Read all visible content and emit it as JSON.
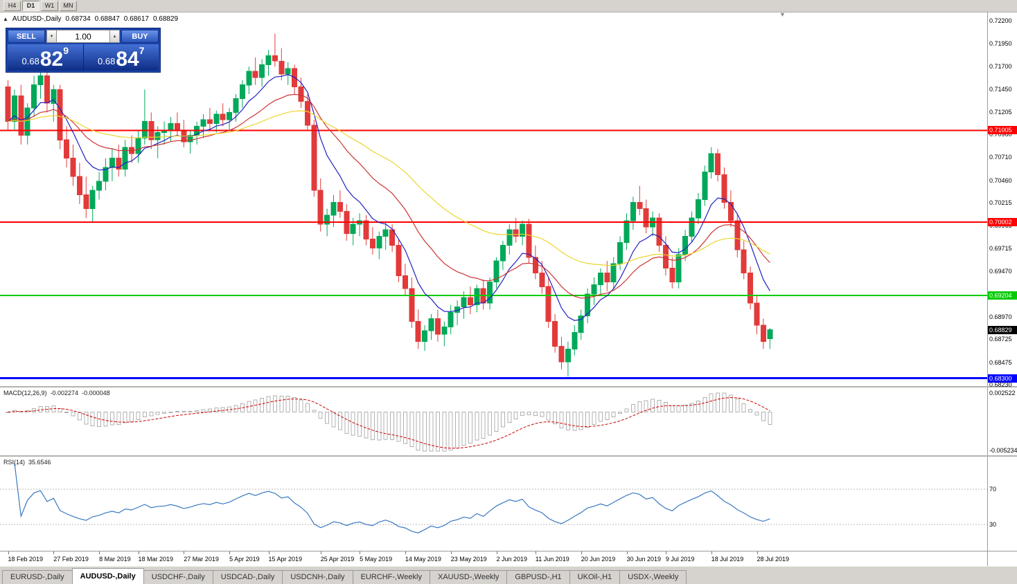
{
  "toolbar": {
    "timeframes": [
      "H4",
      "D1",
      "W1",
      "MN"
    ],
    "active": "D1"
  },
  "icons": {
    "panel_collapse": "▲",
    "chart_shift": "▼",
    "volume_up": "▲",
    "volume_down": "▼"
  },
  "header": {
    "symbol": "AUDUSD-,Daily",
    "o": "0.68734",
    "h": "0.68847",
    "l": "0.68617",
    "c": "0.68829"
  },
  "trade_panel": {
    "sell_label": "SELL",
    "buy_label": "BUY",
    "volume": "1.00",
    "sell_price": {
      "prefix": "0.68",
      "big": "82",
      "sup": "9"
    },
    "buy_price": {
      "prefix": "0.68",
      "big": "84",
      "sup": "7"
    }
  },
  "price_scale": [
    "0.72200",
    "0.71950",
    "0.71700",
    "0.71450",
    "0.71205",
    "0.70960",
    "0.70710",
    "0.70460",
    "0.70215",
    "0.69965",
    "0.69715",
    "0.69470",
    "0.68970",
    "0.68725",
    "0.68475",
    "0.68230"
  ],
  "hlines": [
    {
      "price": 0.71005,
      "label": "0.71005",
      "color": "#FF0000",
      "thickness": 2,
      "name": "resistance-line-0-71005"
    },
    {
      "price": 0.70002,
      "label": "0.70002",
      "color": "#FF0000",
      "thickness": 2,
      "name": "resistance-line-0-70002"
    },
    {
      "price": 0.69204,
      "label": "0.69204",
      "color": "#00CC00",
      "thickness": 2,
      "name": "support-line-0-69204"
    },
    {
      "price": 0.683,
      "label": "0.68300",
      "color": "#0000FF",
      "thickness": 3,
      "name": "support-line-0-68300"
    }
  ],
  "current_price": {
    "label": "0.68829",
    "price": 0.68829,
    "bg": "#000000"
  },
  "macd": {
    "name": "MACD(12,26,9)",
    "value1": "-0.002274",
    "value2": "-0.000048",
    "scale_top": "0.002522",
    "scale_bottom": "-0.005234",
    "histogram_color": "#b0b0b0",
    "signal_color": "#CC0000"
  },
  "rsi": {
    "name": "RSI(14)",
    "value": "35.6546",
    "levels": [
      "70",
      "30"
    ],
    "line_color": "#3878C0",
    "level_color": "#b8b8b8"
  },
  "date_axis": [
    {
      "label": "18 Feb 2019",
      "idx": 0
    },
    {
      "label": "27 Feb 2019",
      "idx": 7
    },
    {
      "label": "8 Mar 2019",
      "idx": 14
    },
    {
      "label": "18 Mar 2019",
      "idx": 20
    },
    {
      "label": "27 Mar 2019",
      "idx": 27
    },
    {
      "label": "5 Apr 2019",
      "idx": 34
    },
    {
      "label": "15 Apr 2019",
      "idx": 40
    },
    {
      "label": "25 Apr 2019",
      "idx": 48
    },
    {
      "label": "5 May 2019",
      "idx": 54
    },
    {
      "label": "14 May 2019",
      "idx": 61
    },
    {
      "label": "23 May 2019",
      "idx": 68
    },
    {
      "label": "2 Jun 2019",
      "idx": 75
    },
    {
      "label": "11 Jun 2019",
      "idx": 81
    },
    {
      "label": "20 Jun 2019",
      "idx": 88
    },
    {
      "label": "30 Jun 2019",
      "idx": 95
    },
    {
      "label": "9 Jul 2019",
      "idx": 101
    },
    {
      "label": "18 Jul 2019",
      "idx": 108
    },
    {
      "label": "28 Jul 2019",
      "idx": 115
    }
  ],
  "tabs": [
    {
      "label": "EURUSD-,Daily",
      "active": false
    },
    {
      "label": "AUDUSD-,Daily",
      "active": true
    },
    {
      "label": "USDCHF-,Daily",
      "active": false
    },
    {
      "label": "USDCAD-,Daily",
      "active": false
    },
    {
      "label": "USDCNH-,Daily",
      "active": false
    },
    {
      "label": "EURCHF-,Weekly",
      "active": false
    },
    {
      "label": "XAUUSD-,Weekly",
      "active": false
    },
    {
      "label": "GBPUSD-,H1",
      "active": false
    },
    {
      "label": "UKOil-,H1",
      "active": false
    },
    {
      "label": "USDX-,Weekly",
      "active": false
    }
  ],
  "chart_data": {
    "type": "candlestick",
    "symbol": "AUDUSD-",
    "timeframe": "Daily",
    "price_axis": {
      "top": 0.722,
      "bottom": 0.6823
    },
    "up_color": "#00A859",
    "down_color": "#E23A3A",
    "moving_averages": [
      {
        "period": 8,
        "color": "#2020C0"
      },
      {
        "period": 20,
        "color": "#CC3333"
      },
      {
        "period": 45,
        "color": "#EDD52E"
      }
    ],
    "candles": [
      [
        0.7148,
        0.7155,
        0.71,
        0.711
      ],
      [
        0.711,
        0.7145,
        0.71,
        0.7138
      ],
      [
        0.7138,
        0.715,
        0.7085,
        0.7095
      ],
      [
        0.7095,
        0.713,
        0.7085,
        0.7125
      ],
      [
        0.7125,
        0.716,
        0.7115,
        0.715
      ],
      [
        0.715,
        0.7168,
        0.7135,
        0.716
      ],
      [
        0.716,
        0.7165,
        0.712,
        0.713
      ],
      [
        0.713,
        0.715,
        0.711,
        0.7145
      ],
      [
        0.7145,
        0.715,
        0.708,
        0.709
      ],
      [
        0.709,
        0.7105,
        0.706,
        0.707
      ],
      [
        0.707,
        0.7085,
        0.704,
        0.705
      ],
      [
        0.705,
        0.7065,
        0.702,
        0.703
      ],
      [
        0.703,
        0.705,
        0.7005,
        0.7015
      ],
      [
        0.7015,
        0.704,
        0.7,
        0.7035
      ],
      [
        0.7035,
        0.7055,
        0.7025,
        0.7045
      ],
      [
        0.7045,
        0.707,
        0.7035,
        0.706
      ],
      [
        0.706,
        0.708,
        0.7045,
        0.707
      ],
      [
        0.707,
        0.7085,
        0.705,
        0.7058
      ],
      [
        0.7058,
        0.709,
        0.705,
        0.7082
      ],
      [
        0.7082,
        0.7095,
        0.7065,
        0.7075
      ],
      [
        0.7075,
        0.71,
        0.7065,
        0.7092
      ],
      [
        0.7092,
        0.7145,
        0.7085,
        0.711
      ],
      [
        0.711,
        0.712,
        0.708,
        0.709
      ],
      [
        0.709,
        0.7105,
        0.707,
        0.7098
      ],
      [
        0.7098,
        0.711,
        0.7085,
        0.71
      ],
      [
        0.71,
        0.7115,
        0.7088,
        0.7108
      ],
      [
        0.7108,
        0.712,
        0.7095,
        0.71
      ],
      [
        0.71,
        0.7112,
        0.7082,
        0.7088
      ],
      [
        0.7088,
        0.71,
        0.7075,
        0.7095
      ],
      [
        0.7095,
        0.711,
        0.7085,
        0.7105
      ],
      [
        0.7105,
        0.7118,
        0.7092,
        0.7112
      ],
      [
        0.7112,
        0.7125,
        0.71,
        0.7108
      ],
      [
        0.7108,
        0.7122,
        0.7098,
        0.7118
      ],
      [
        0.7118,
        0.713,
        0.7105,
        0.7112
      ],
      [
        0.7112,
        0.7125,
        0.71,
        0.712
      ],
      [
        0.712,
        0.714,
        0.711,
        0.7135
      ],
      [
        0.7135,
        0.7155,
        0.7125,
        0.715
      ],
      [
        0.715,
        0.717,
        0.714,
        0.7165
      ],
      [
        0.7165,
        0.718,
        0.715,
        0.7158
      ],
      [
        0.7158,
        0.7178,
        0.7148,
        0.7172
      ],
      [
        0.7172,
        0.7188,
        0.716,
        0.7182
      ],
      [
        0.7182,
        0.7206,
        0.717,
        0.7176
      ],
      [
        0.7176,
        0.719,
        0.7155,
        0.7162
      ],
      [
        0.7162,
        0.7175,
        0.715,
        0.7168
      ],
      [
        0.7168,
        0.7172,
        0.714,
        0.7148
      ],
      [
        0.7148,
        0.7158,
        0.7125,
        0.7132
      ],
      [
        0.7132,
        0.714,
        0.71,
        0.7106
      ],
      [
        0.7106,
        0.7112,
        0.7028,
        0.7035
      ],
      [
        0.7035,
        0.7048,
        0.699,
        0.6998
      ],
      [
        0.6998,
        0.7015,
        0.6985,
        0.7008
      ],
      [
        0.7008,
        0.703,
        0.6995,
        0.7022
      ],
      [
        0.7022,
        0.7035,
        0.7005,
        0.7012
      ],
      [
        0.7012,
        0.702,
        0.698,
        0.6988
      ],
      [
        0.6988,
        0.7005,
        0.6975,
        0.6998
      ],
      [
        0.6998,
        0.701,
        0.6985,
        0.7002
      ],
      [
        0.7002,
        0.7008,
        0.6975,
        0.6982
      ],
      [
        0.6982,
        0.6995,
        0.6965,
        0.6972
      ],
      [
        0.6972,
        0.699,
        0.696,
        0.6985
      ],
      [
        0.6985,
        0.7,
        0.697,
        0.6992
      ],
      [
        0.6992,
        0.6998,
        0.6968,
        0.6975
      ],
      [
        0.6975,
        0.6982,
        0.6935,
        0.6942
      ],
      [
        0.6942,
        0.6955,
        0.692,
        0.6928
      ],
      [
        0.6928,
        0.694,
        0.6885,
        0.6892
      ],
      [
        0.6892,
        0.6905,
        0.6862,
        0.687
      ],
      [
        0.687,
        0.6888,
        0.686,
        0.6882
      ],
      [
        0.6882,
        0.69,
        0.6872,
        0.6895
      ],
      [
        0.6895,
        0.6905,
        0.687,
        0.6878
      ],
      [
        0.6878,
        0.6892,
        0.6865,
        0.6886
      ],
      [
        0.6886,
        0.691,
        0.6878,
        0.6902
      ],
      [
        0.6902,
        0.6915,
        0.6888,
        0.6908
      ],
      [
        0.6908,
        0.6925,
        0.6895,
        0.6918
      ],
      [
        0.6918,
        0.693,
        0.69,
        0.691
      ],
      [
        0.691,
        0.6932,
        0.6902,
        0.6928
      ],
      [
        0.6928,
        0.6938,
        0.6905,
        0.6912
      ],
      [
        0.6912,
        0.694,
        0.6905,
        0.6935
      ],
      [
        0.6935,
        0.6962,
        0.6928,
        0.6958
      ],
      [
        0.6958,
        0.698,
        0.6948,
        0.6975
      ],
      [
        0.6975,
        0.6998,
        0.6965,
        0.6992
      ],
      [
        0.6992,
        0.7005,
        0.6978,
        0.6985
      ],
      [
        0.6985,
        0.7002,
        0.6975,
        0.6998
      ],
      [
        0.6998,
        0.7004,
        0.6955,
        0.6962
      ],
      [
        0.6962,
        0.6975,
        0.6938,
        0.6945
      ],
      [
        0.6945,
        0.6958,
        0.6922,
        0.693
      ],
      [
        0.693,
        0.694,
        0.6885,
        0.6892
      ],
      [
        0.6892,
        0.69,
        0.6858,
        0.6865
      ],
      [
        0.6865,
        0.6875,
        0.684,
        0.6848
      ],
      [
        0.6848,
        0.687,
        0.6832,
        0.6862
      ],
      [
        0.6862,
        0.6888,
        0.6855,
        0.688
      ],
      [
        0.688,
        0.6905,
        0.6872,
        0.6898
      ],
      [
        0.6898,
        0.6928,
        0.689,
        0.6922
      ],
      [
        0.6922,
        0.694,
        0.691,
        0.6932
      ],
      [
        0.6932,
        0.695,
        0.692,
        0.6945
      ],
      [
        0.6945,
        0.6958,
        0.6925,
        0.6935
      ],
      [
        0.6935,
        0.6962,
        0.6928,
        0.6955
      ],
      [
        0.6955,
        0.6985,
        0.6948,
        0.6978
      ],
      [
        0.6978,
        0.701,
        0.697,
        0.7002
      ],
      [
        0.7002,
        0.7028,
        0.6992,
        0.7022
      ],
      [
        0.7022,
        0.704,
        0.7008,
        0.7015
      ],
      [
        0.7015,
        0.7025,
        0.6988,
        0.6995
      ],
      [
        0.6995,
        0.7012,
        0.6985,
        0.7005
      ],
      [
        0.7005,
        0.701,
        0.6968,
        0.6975
      ],
      [
        0.6975,
        0.6985,
        0.6942,
        0.695
      ],
      [
        0.695,
        0.6962,
        0.6928,
        0.6935
      ],
      [
        0.6935,
        0.6972,
        0.6928,
        0.6965
      ],
      [
        0.6965,
        0.6992,
        0.6958,
        0.6985
      ],
      [
        0.6985,
        0.7012,
        0.6978,
        0.7005
      ],
      [
        0.7005,
        0.7032,
        0.6998,
        0.7025
      ],
      [
        0.7025,
        0.7062,
        0.7018,
        0.7055
      ],
      [
        0.7055,
        0.7082,
        0.7048,
        0.7075
      ],
      [
        0.7075,
        0.708,
        0.7045,
        0.7052
      ],
      [
        0.7052,
        0.706,
        0.7015,
        0.7022
      ],
      [
        0.7022,
        0.7035,
        0.6995,
        0.7002
      ],
      [
        0.7002,
        0.701,
        0.6962,
        0.697
      ],
      [
        0.697,
        0.698,
        0.6938,
        0.6945
      ],
      [
        0.6945,
        0.6952,
        0.6905,
        0.6912
      ],
      [
        0.6912,
        0.692,
        0.6878,
        0.6888
      ],
      [
        0.6888,
        0.6895,
        0.6862,
        0.687
      ],
      [
        0.6873,
        0.6885,
        0.6862,
        0.6883
      ]
    ]
  }
}
